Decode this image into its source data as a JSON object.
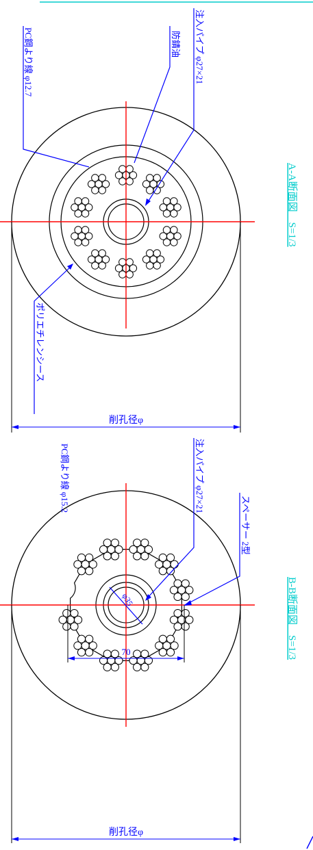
{
  "section_aa": {
    "title": "A-A断面図　S=1/3",
    "label_pc_strand": "PC鋼より線 φ12.7",
    "label_rust_oil": "防錆油",
    "label_pipe": "注入パイプ φ27×21",
    "label_sheath": "ポリエチレンシース",
    "label_bore": "削孔径φ"
  },
  "section_bb": {
    "title": "B-B断面図　S=1/3",
    "label_pc_strand": "PC鋼より線 φ15.2",
    "label_spacer": "スペーサー 2型",
    "label_pipe": "注入パイプ φ27×21",
    "label_inner_dia": "φ35",
    "label_width": "70",
    "label_bore": "削孔径φ"
  },
  "colors": {
    "line": "#000000",
    "center_line": "#ff0000",
    "leader": "#0000ff",
    "label": "#0000ff",
    "title": "#00cccc"
  }
}
